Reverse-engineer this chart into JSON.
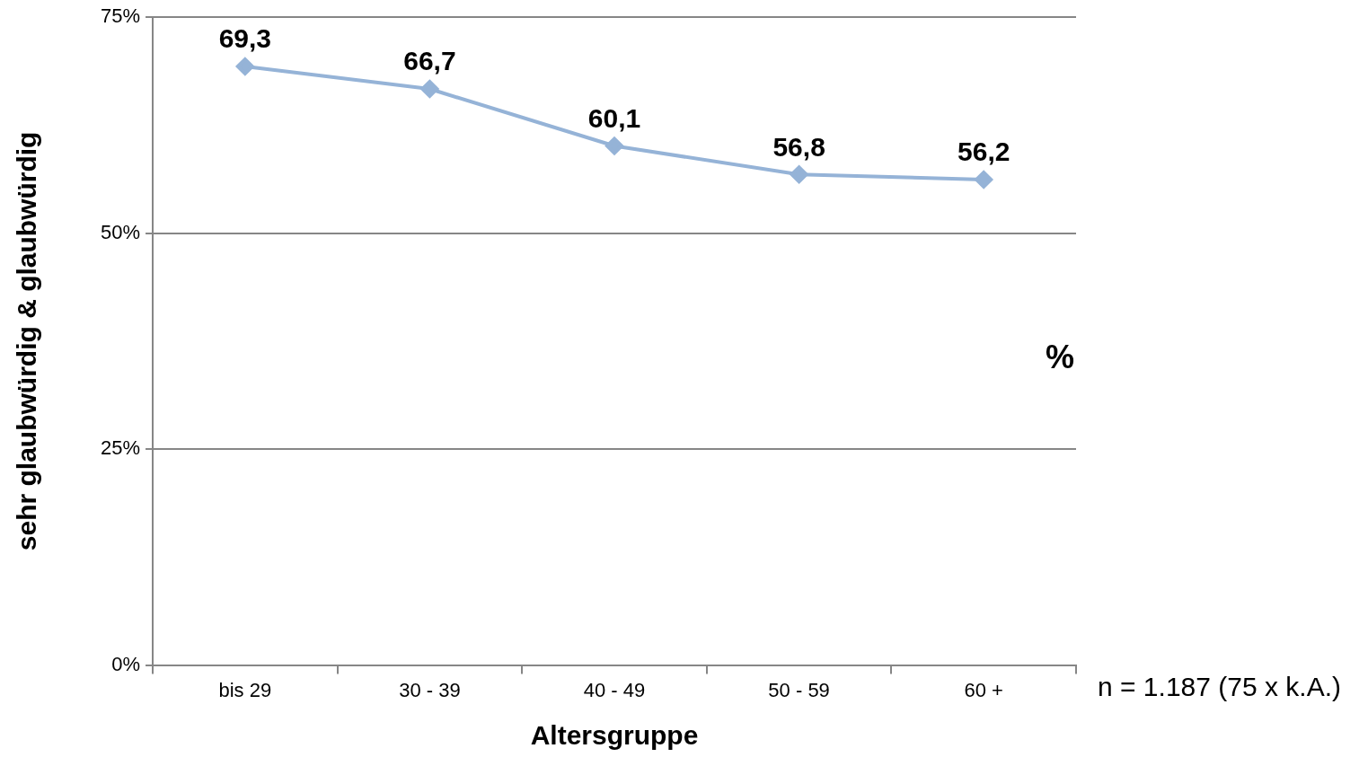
{
  "chart_data": {
    "type": "line",
    "xlabel": "Altersgruppe",
    "ylabel": "sehr glaubwürdig & glaubwürdig",
    "categories": [
      "bis 29",
      "30 - 39",
      "40 - 49",
      "50 - 59",
      "60 +"
    ],
    "series": [
      {
        "color": "#95b3d7",
        "values": [
          69.3,
          66.7,
          60.1,
          56.8,
          56.2
        ],
        "value_labels": [
          "69,3",
          "66,7",
          "60,1",
          "56,8",
          "56,2"
        ]
      }
    ],
    "ylim": [
      0,
      75
    ],
    "yticks": [
      {
        "value": 0,
        "label": "0%"
      },
      {
        "value": 25,
        "label": "25%"
      },
      {
        "value": 50,
        "label": "50%"
      },
      {
        "value": 75,
        "label": "75%"
      }
    ],
    "grid": "y",
    "legend": false,
    "marker": "diamond",
    "line_style": "solid",
    "annotations": [
      "%",
      "n = 1.187 (75 x k.A.)"
    ]
  }
}
